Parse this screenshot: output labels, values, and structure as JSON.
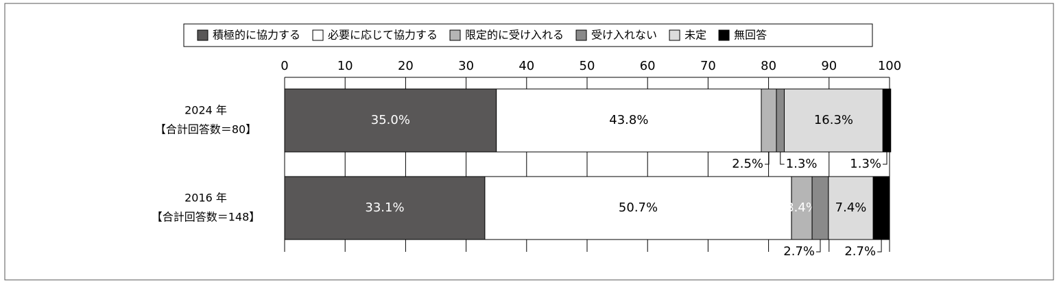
{
  "chart_data": {
    "type": "stacked-barh",
    "categories": [
      [
        "2024 年",
        "【合計回答数＝80】"
      ],
      [
        "2016 年",
        "【合計回答数＝148】"
      ]
    ],
    "series": [
      {
        "name": "積極的に協力する",
        "color": "#595757",
        "label_color": "#ffffff",
        "values": [
          35.0,
          33.1
        ],
        "value_labels": [
          "35.0%",
          "33.1%"
        ]
      },
      {
        "name": "必要に応じて協力する",
        "color": "#ffffff",
        "label_color": "#000000",
        "values": [
          43.8,
          50.7
        ],
        "value_labels": [
          "43.8%",
          "50.7%"
        ]
      },
      {
        "name": "限定的に受け入れる",
        "color": "#b5b5b5",
        "label_color": "#ffffff",
        "values": [
          2.5,
          3.4
        ],
        "value_labels": [
          "2.5%",
          "3.4%"
        ]
      },
      {
        "name": "受け入れない",
        "color": "#8a8a8a",
        "label_color": "#ffffff",
        "values": [
          1.3,
          2.7
        ],
        "value_labels": [
          "1.3%",
          "2.7%"
        ]
      },
      {
        "name": "未定",
        "color": "#dcdcdc",
        "label_color": "#000000",
        "values": [
          16.3,
          7.4
        ],
        "value_labels": [
          "16.3%",
          "7.4%"
        ]
      },
      {
        "name": "無回答",
        "color": "#000000",
        "label_color": "#ffffff",
        "values": [
          1.3,
          2.7
        ],
        "value_labels": [
          "1.3%",
          "2.7%"
        ]
      }
    ],
    "xlim": [
      0,
      100
    ],
    "xticks": [
      0,
      10,
      20,
      30,
      40,
      50,
      60,
      70,
      80,
      90,
      100
    ],
    "grid": true
  }
}
